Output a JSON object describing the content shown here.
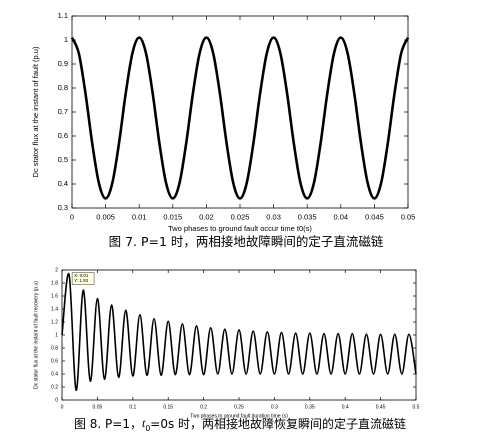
{
  "chart_data": [
    {
      "type": "line",
      "caption": [
        "图 7. P=1 时，两相接地故障瞬间的定子直流磁链"
      ],
      "xlabel": "Two phases to ground fault occur time t0(s)",
      "ylabel": "Dc stator flux at the instant of fault (p.u)",
      "xlim": [
        0,
        0.05
      ],
      "ylim": [
        0.3,
        1.1
      ],
      "xticks": [
        0,
        0.005,
        0.01,
        0.015,
        0.02,
        0.025,
        0.03,
        0.035,
        0.04,
        0.045,
        0.05
      ],
      "yticks": [
        0.3,
        0.4,
        0.5,
        0.6,
        0.7,
        0.8,
        0.9,
        1,
        1.1
      ],
      "grid": false,
      "x": [
        0,
        0.001,
        0.002,
        0.003,
        0.004,
        0.005,
        0.006,
        0.007,
        0.008,
        0.009,
        0.01,
        0.011,
        0.012,
        0.013,
        0.014,
        0.015,
        0.016,
        0.017,
        0.018,
        0.019,
        0.02,
        0.021,
        0.022,
        0.023,
        0.024,
        0.025,
        0.026,
        0.027,
        0.028,
        0.029,
        0.03,
        0.031,
        0.032,
        0.033,
        0.034,
        0.035,
        0.036,
        0.037,
        0.038,
        0.039,
        0.04,
        0.041,
        0.042,
        0.043,
        0.044,
        0.045,
        0.046,
        0.047,
        0.048,
        0.049,
        0.05
      ],
      "series": [
        {
          "color": "#000000",
          "values": [
            1.01,
            0.946,
            0.779,
            0.571,
            0.404,
            0.34,
            0.404,
            0.571,
            0.779,
            0.946,
            1.01,
            0.946,
            0.779,
            0.571,
            0.404,
            0.34,
            0.404,
            0.571,
            0.779,
            0.946,
            1.01,
            0.946,
            0.779,
            0.571,
            0.404,
            0.34,
            0.404,
            0.571,
            0.779,
            0.946,
            1.01,
            0.946,
            0.779,
            0.571,
            0.404,
            0.34,
            0.404,
            0.571,
            0.779,
            0.946,
            1.01,
            0.946,
            0.779,
            0.571,
            0.404,
            0.34,
            0.404,
            0.571,
            0.779,
            0.946,
            1.01
          ]
        }
      ]
    },
    {
      "type": "line",
      "caption": [
        "图 8. P=1，",
        "t",
        "0",
        "=0s 时，两相接地故障恢复瞬间的定子直流磁链"
      ],
      "xlabel": "Two phases to ground fault duration time (s)",
      "ylabel": "Dc stator flux at the instant of fault recovery (p.u)",
      "annotation": [
        "X: 0.01",
        "Y: 1.93"
      ],
      "xlim": [
        0,
        0.5
      ],
      "ylim": [
        0,
        2
      ],
      "xticks": [
        0,
        0.05,
        0.1,
        0.15,
        0.2,
        0.25,
        0.3,
        0.35,
        0.4,
        0.45,
        0.5
      ],
      "yticks": [
        0,
        0.2,
        0.4,
        0.6,
        0.8,
        1,
        1.2,
        1.4,
        1.6,
        1.8,
        2
      ],
      "grid": false,
      "x": [
        0,
        0.01,
        0.02,
        0.03,
        0.04,
        0.05,
        0.06,
        0.07,
        0.08,
        0.09,
        0.1,
        0.11,
        0.12,
        0.13,
        0.14,
        0.15,
        0.16,
        0.17,
        0.18,
        0.19,
        0.2,
        0.21,
        0.22,
        0.23,
        0.24,
        0.25,
        0.26,
        0.27,
        0.28,
        0.29,
        0.3,
        0.31,
        0.32,
        0.33,
        0.34,
        0.35,
        0.36,
        0.37,
        0.38,
        0.39,
        0.4,
        0.41,
        0.42,
        0.43,
        0.44,
        0.45,
        0.46,
        0.47,
        0.48,
        0.49,
        0.5
      ],
      "series": [
        {
          "color": "#000000",
          "values": [
            1.0,
            1.93,
            0.15,
            1.69,
            0.29,
            1.56,
            0.32,
            1.46,
            0.35,
            1.38,
            0.37,
            1.31,
            0.38,
            1.25,
            0.38,
            1.21,
            0.39,
            1.17,
            0.39,
            1.14,
            0.39,
            1.11,
            0.4,
            1.09,
            0.4,
            1.08,
            0.4,
            1.06,
            0.4,
            1.05,
            0.4,
            1.04,
            0.4,
            1.03,
            0.4,
            1.03,
            0.4,
            1.02,
            0.4,
            1.02,
            0.4,
            1.02,
            0.4,
            1.01,
            0.4,
            1.01,
            0.4,
            1.01,
            0.4,
            1.01,
            0.4
          ]
        }
      ]
    }
  ]
}
